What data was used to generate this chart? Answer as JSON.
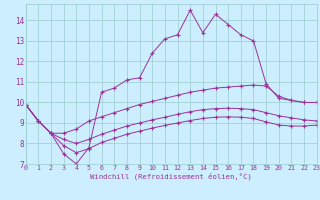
{
  "xlabel": "Windchill (Refroidissement éolien,°C)",
  "bg_color": "#cceeff",
  "line_color": "#993399",
  "grid_color": "#99cccc",
  "xmin": 0,
  "xmax": 23,
  "ymin": 7,
  "ymax": 14.8,
  "series": [
    [
      9.9,
      9.1,
      8.5,
      7.5,
      7.0,
      7.8,
      10.5,
      10.7,
      11.1,
      11.2,
      12.4,
      13.1,
      13.3,
      14.5,
      13.4,
      14.3,
      13.8,
      13.3,
      13.0,
      10.9,
      10.2,
      10.1,
      10.0,
      10.0
    ],
    [
      9.9,
      9.1,
      8.5,
      8.5,
      8.7,
      9.1,
      9.3,
      9.5,
      9.7,
      9.9,
      10.05,
      10.2,
      10.35,
      10.5,
      10.6,
      10.7,
      10.75,
      10.8,
      10.85,
      10.8,
      10.3,
      10.1,
      10.0,
      10.0
    ],
    [
      9.9,
      9.1,
      8.5,
      8.2,
      8.0,
      8.2,
      8.45,
      8.65,
      8.85,
      9.0,
      9.15,
      9.28,
      9.42,
      9.55,
      9.65,
      9.7,
      9.72,
      9.7,
      9.65,
      9.5,
      9.35,
      9.25,
      9.15,
      9.1
    ],
    [
      9.9,
      9.1,
      8.5,
      7.9,
      7.55,
      7.75,
      8.05,
      8.25,
      8.45,
      8.6,
      8.75,
      8.88,
      9.0,
      9.12,
      9.22,
      9.28,
      9.3,
      9.28,
      9.22,
      9.05,
      8.9,
      8.85,
      8.85,
      8.9
    ]
  ],
  "xticks": [
    0,
    1,
    2,
    3,
    4,
    5,
    6,
    7,
    8,
    9,
    10,
    11,
    12,
    13,
    14,
    15,
    16,
    17,
    18,
    19,
    20,
    21,
    22,
    23
  ],
  "yticks": [
    7,
    8,
    9,
    10,
    11,
    12,
    13,
    14
  ]
}
